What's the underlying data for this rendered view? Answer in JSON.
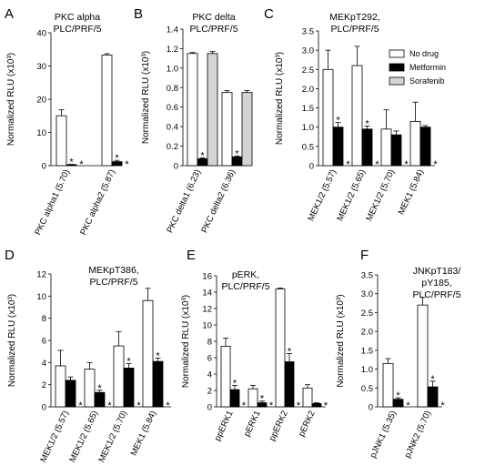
{
  "legend": {
    "placement": "top-right",
    "items": [
      {
        "label": "No drug",
        "color": "#ffffff"
      },
      {
        "label": "Metformin",
        "color": "#000000"
      },
      {
        "label": "Sorafenib",
        "color": "#d4d4d4"
      }
    ]
  },
  "series_colors": [
    "#ffffff",
    "#000000",
    "#d4d4d4"
  ],
  "chart_data": [
    {
      "panel": "A",
      "type": "bar",
      "title": [
        "PKC alpha",
        "PLC/PRF/5"
      ],
      "ylabel": "Normalized RLU (x10³)",
      "ylim": [
        0,
        40
      ],
      "yticks": [
        0,
        10,
        20,
        30,
        40
      ],
      "ytick_labels": [
        "0",
        "10",
        "20",
        "30",
        "40"
      ],
      "categories": [
        "PKC alpha1 (5.70)",
        "PKC alpha2 (5.87)"
      ],
      "series": [
        {
          "name": "No drug",
          "values": [
            15,
            33.3
          ],
          "errors": [
            1.8,
            0.4
          ]
        },
        {
          "name": "Metformin",
          "values": [
            0.3,
            1.2
          ],
          "errors": [
            0.1,
            0.4
          ]
        },
        {
          "name": "Sorafenib",
          "values": [
            0,
            0
          ],
          "errors": [
            0,
            0
          ]
        }
      ],
      "annotations": [
        {
          "category": 0,
          "series": 1,
          "text": "*"
        },
        {
          "category": 0,
          "series": 2,
          "text": "*"
        },
        {
          "category": 1,
          "series": 1,
          "text": "*"
        },
        {
          "category": 1,
          "series": 2,
          "text": "*"
        }
      ]
    },
    {
      "panel": "B",
      "type": "bar",
      "title": [
        "PKC delta",
        "PLC/PRF/5"
      ],
      "ylabel": "Normalized RLU (x10³)",
      "ylim": [
        0,
        1.4
      ],
      "yticks": [
        0,
        0.2,
        0.4,
        0.6,
        0.8,
        1.0,
        1.2,
        1.4
      ],
      "ytick_labels": [
        "0",
        "0.2",
        "0.4",
        "0.6",
        "0.8",
        "1.0",
        "1.2",
        "1.4"
      ],
      "categories": [
        "PKC delta1 (6.23)",
        "PKC delta2 (6.36)"
      ],
      "series": [
        {
          "name": "No drug",
          "values": [
            1.15,
            0.75
          ],
          "errors": [
            0.01,
            0.02
          ]
        },
        {
          "name": "Metformin",
          "values": [
            0.07,
            0.09
          ],
          "errors": [
            0.01,
            0.01
          ]
        },
        {
          "name": "Sorafenib",
          "values": [
            1.15,
            0.75
          ],
          "errors": [
            0.02,
            0.02
          ]
        }
      ],
      "annotations": [
        {
          "category": 0,
          "series": 1,
          "text": "*"
        },
        {
          "category": 1,
          "series": 1,
          "text": "*"
        }
      ]
    },
    {
      "panel": "C",
      "type": "bar",
      "title": [
        "MEKpT292,",
        "PLC/PRF/5"
      ],
      "ylabel": "Normalized RLU (x10³)",
      "ylim": [
        0,
        3.5
      ],
      "yticks": [
        0,
        0.5,
        1.0,
        1.5,
        2.0,
        2.5,
        3.0,
        3.5
      ],
      "ytick_labels": [
        "0",
        "0.5",
        "1.0",
        "1.5",
        "2.0",
        "2.5",
        "3.0",
        "3.5"
      ],
      "categories": [
        "MEK1/2 (5.57)",
        "MEK1/2 (5.65)",
        "MEK1/2 (5.70)",
        "MEK1 (5.84)"
      ],
      "series": [
        {
          "name": "No drug",
          "values": [
            2.5,
            2.6,
            0.95,
            1.15
          ],
          "errors": [
            0.5,
            0.5,
            0.5,
            0.5
          ]
        },
        {
          "name": "Metformin",
          "values": [
            1.0,
            0.95,
            0.8,
            1.0
          ],
          "errors": [
            0.12,
            0.08,
            0.1,
            0.04
          ]
        },
        {
          "name": "Sorafenib",
          "values": [
            0,
            0,
            0,
            0
          ],
          "errors": [
            0,
            0,
            0,
            0
          ]
        }
      ],
      "annotations": [
        {
          "category": 0,
          "series": 1,
          "text": "*"
        },
        {
          "category": 0,
          "series": 2,
          "text": "*"
        },
        {
          "category": 1,
          "series": 1,
          "text": "*"
        },
        {
          "category": 1,
          "series": 2,
          "text": "*"
        },
        {
          "category": 2,
          "series": 2,
          "text": "*"
        },
        {
          "category": 3,
          "series": 2,
          "text": "*"
        }
      ]
    },
    {
      "panel": "D",
      "type": "bar",
      "title": [
        "MEKpT386,",
        "PLC/PRF/5"
      ],
      "ylabel": "Normalized RLU (x10³)",
      "ylim": [
        0,
        12
      ],
      "yticks": [
        0,
        2,
        4,
        6,
        8,
        10,
        12
      ],
      "ytick_labels": [
        "0",
        "2",
        "4",
        "6",
        "8",
        "10",
        "12"
      ],
      "categories": [
        "MEK1/2 (5.57)",
        "MEK1/2 (5.65)",
        "MEK1/2 (5.70)",
        "MEK1 (5.84)"
      ],
      "series": [
        {
          "name": "No drug",
          "values": [
            3.7,
            3.4,
            5.5,
            9.6
          ],
          "errors": [
            1.4,
            0.6,
            1.3,
            1.1
          ]
        },
        {
          "name": "Metformin",
          "values": [
            2.4,
            1.3,
            3.5,
            4.1
          ],
          "errors": [
            0.3,
            0.2,
            0.4,
            0.3
          ]
        },
        {
          "name": "Sorafenib",
          "values": [
            0,
            0,
            0,
            0
          ],
          "errors": [
            0,
            0,
            0,
            0
          ]
        }
      ],
      "annotations": [
        {
          "category": 0,
          "series": 2,
          "text": "*"
        },
        {
          "category": 1,
          "series": 1,
          "text": "*"
        },
        {
          "category": 1,
          "series": 2,
          "text": "*"
        },
        {
          "category": 2,
          "series": 1,
          "text": "*"
        },
        {
          "category": 2,
          "series": 2,
          "text": "*"
        },
        {
          "category": 3,
          "series": 1,
          "text": "*"
        },
        {
          "category": 3,
          "series": 2,
          "text": "*"
        }
      ]
    },
    {
      "panel": "E",
      "type": "bar",
      "title": [
        "pERK,",
        "PLC/PRF/5"
      ],
      "ylabel": "Normalized RLU (x10³)",
      "ylim": [
        0,
        16
      ],
      "yticks": [
        0,
        2,
        4,
        6,
        8,
        10,
        12,
        14,
        16
      ],
      "ytick_labels": [
        "0",
        "2",
        "4",
        "6",
        "8",
        "10",
        "12",
        "14",
        "16"
      ],
      "categories": [
        "ppERK1",
        "pERK1",
        "ppERK2",
        "pERK2"
      ],
      "series": [
        {
          "name": "No drug",
          "values": [
            7.4,
            2.2,
            14.4,
            2.3
          ],
          "errors": [
            1.0,
            0.4,
            0.1,
            0.4
          ]
        },
        {
          "name": "Metformin",
          "values": [
            2.1,
            0.5,
            5.5,
            0.4
          ],
          "errors": [
            0.5,
            0.2,
            1.0,
            0.1
          ]
        },
        {
          "name": "Sorafenib",
          "values": [
            0,
            0,
            0,
            0
          ],
          "errors": [
            0,
            0,
            0,
            0
          ]
        }
      ],
      "annotations": [
        {
          "category": 0,
          "series": 1,
          "text": "*"
        },
        {
          "category": 0,
          "series": 2,
          "text": "*"
        },
        {
          "category": 1,
          "series": 1,
          "text": "*"
        },
        {
          "category": 1,
          "series": 2,
          "text": "*"
        },
        {
          "category": 2,
          "series": 1,
          "text": "*"
        },
        {
          "category": 2,
          "series": 2,
          "text": "*"
        },
        {
          "category": 3,
          "series": 2,
          "text": "*"
        }
      ]
    },
    {
      "panel": "F",
      "type": "bar",
      "title": [
        "JNKpT183/",
        "pY185,",
        "PLC/PRF/5"
      ],
      "ylabel": "Normalized RLU (x10³)",
      "ylim": [
        0,
        3.5
      ],
      "yticks": [
        0,
        0.5,
        1.0,
        1.5,
        2.0,
        2.5,
        3.0,
        3.5
      ],
      "ytick_labels": [
        "0",
        "0.5",
        "1.0",
        "1.5",
        "2.0",
        "2.5",
        "3.0",
        "3.5"
      ],
      "categories": [
        "pJNK1 (5.35)",
        "pJNK2 (5.70)"
      ],
      "series": [
        {
          "name": "No drug",
          "values": [
            1.15,
            2.7
          ],
          "errors": [
            0.13,
            0.2
          ]
        },
        {
          "name": "Metformin",
          "values": [
            0.2,
            0.53
          ],
          "errors": [
            0.04,
            0.15
          ]
        },
        {
          "name": "Sorafenib",
          "values": [
            0,
            0
          ],
          "errors": [
            0,
            0
          ]
        }
      ],
      "annotations": [
        {
          "category": 0,
          "series": 1,
          "text": "*"
        },
        {
          "category": 0,
          "series": 2,
          "text": "*"
        },
        {
          "category": 1,
          "series": 1,
          "text": "*"
        },
        {
          "category": 1,
          "series": 2,
          "text": "*"
        }
      ]
    }
  ]
}
